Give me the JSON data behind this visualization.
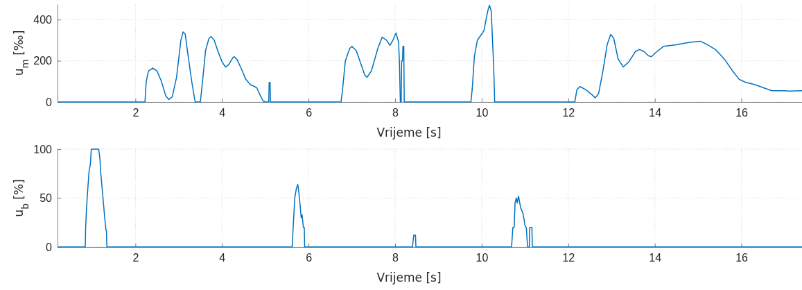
{
  "chart_data": [
    {
      "type": "line",
      "xlabel": "Vrijeme [s]",
      "ylabel": "u$_{m}$ [‰]",
      "xlim": [
        0.2,
        17.4
      ],
      "ylim": [
        0,
        475
      ],
      "xticks": [
        2,
        4,
        6,
        8,
        10,
        12,
        14,
        16
      ],
      "yticks": [
        0,
        200,
        400
      ],
      "grid": true,
      "x": [
        0.2,
        2.22,
        2.25,
        2.3,
        2.4,
        2.5,
        2.6,
        2.7,
        2.77,
        2.85,
        2.95,
        3.05,
        3.1,
        3.15,
        3.2,
        3.3,
        3.38,
        3.5,
        3.55,
        3.62,
        3.7,
        3.75,
        3.82,
        3.9,
        4.0,
        4.08,
        4.15,
        4.25,
        4.28,
        4.35,
        4.45,
        4.55,
        4.65,
        4.8,
        4.9,
        4.95,
        5.0,
        5.08,
        5.09,
        5.11,
        5.12,
        6.75,
        6.78,
        6.85,
        6.95,
        7.0,
        7.1,
        7.2,
        7.3,
        7.35,
        7.45,
        7.6,
        7.7,
        7.8,
        7.88,
        7.95,
        8.02,
        8.08,
        8.1,
        8.12,
        8.14,
        8.15,
        8.17,
        8.18,
        8.2,
        8.21,
        9.75,
        9.78,
        9.83,
        9.9,
        10.0,
        10.05,
        10.1,
        10.15,
        10.18,
        10.22,
        10.25,
        10.28,
        10.3,
        12.15,
        12.2,
        12.27,
        12.4,
        12.55,
        12.62,
        12.7,
        12.8,
        12.9,
        12.98,
        13.05,
        13.15,
        13.27,
        13.4,
        13.55,
        13.65,
        13.75,
        13.85,
        13.92,
        14.05,
        14.2,
        14.5,
        14.8,
        15.05,
        15.2,
        15.4,
        15.6,
        15.8,
        15.95,
        16.1,
        16.3,
        16.5,
        16.7,
        17.0,
        17.1,
        17.4
      ],
      "series": [
        {
          "color": "#0072bd",
          "values": [
            0,
            0,
            100,
            150,
            165,
            150,
            100,
            30,
            12,
            25,
            120,
            300,
            340,
            330,
            250,
            100,
            0,
            0,
            100,
            250,
            310,
            318,
            300,
            250,
            195,
            170,
            180,
            215,
            220,
            205,
            160,
            110,
            85,
            70,
            25,
            5,
            0,
            0,
            95,
            95,
            0,
            0,
            50,
            200,
            260,
            270,
            250,
            190,
            130,
            120,
            150,
            260,
            315,
            300,
            275,
            300,
            335,
            290,
            185,
            0,
            0,
            200,
            200,
            270,
            270,
            0,
            0,
            60,
            220,
            300,
            330,
            345,
            400,
            450,
            470,
            440,
            300,
            150,
            0,
            0,
            60,
            75,
            60,
            35,
            20,
            40,
            150,
            280,
            328,
            310,
            210,
            170,
            195,
            245,
            255,
            245,
            225,
            220,
            245,
            270,
            278,
            290,
            295,
            280,
            255,
            210,
            150,
            110,
            95,
            85,
            70,
            55,
            55,
            53,
            55
          ]
        }
      ]
    },
    {
      "type": "line",
      "xlabel": "Vrijeme [s]",
      "ylabel": "u$_{b}$ [%]",
      "xlim": [
        0.2,
        17.4
      ],
      "ylim": [
        0,
        100
      ],
      "xticks": [
        2,
        4,
        6,
        8,
        10,
        12,
        14,
        16
      ],
      "yticks": [
        0,
        50,
        100
      ],
      "grid": true,
      "x": [
        0.2,
        0.84,
        0.85,
        0.87,
        0.9,
        0.93,
        0.96,
        0.98,
        1.15,
        1.18,
        1.2,
        1.23,
        1.26,
        1.29,
        1.32,
        1.33,
        1.34,
        5.62,
        5.65,
        5.68,
        5.72,
        5.75,
        5.77,
        5.8,
        5.83,
        5.85,
        5.88,
        5.9,
        5.91,
        8.4,
        8.42,
        8.43,
        8.47,
        8.48,
        10.69,
        10.72,
        10.75,
        10.77,
        10.8,
        10.82,
        10.85,
        10.88,
        10.9,
        10.95,
        10.98,
        11.0,
        11.03,
        11.06,
        11.1,
        11.11,
        11.16,
        11.17,
        17.4
      ],
      "series": [
        {
          "color": "#0072bd",
          "values": [
            0,
            0,
            20,
            40,
            60,
            78,
            85,
            100,
            100,
            90,
            75,
            60,
            45,
            30,
            17,
            17,
            0,
            0,
            25,
            50,
            60,
            64,
            58,
            45,
            30,
            33,
            20,
            20,
            0,
            0,
            8,
            12,
            12,
            0,
            0,
            20,
            20,
            45,
            50,
            45,
            52,
            45,
            40,
            35,
            28,
            22,
            20,
            0,
            0,
            20,
            20,
            0,
            0
          ]
        }
      ]
    }
  ]
}
